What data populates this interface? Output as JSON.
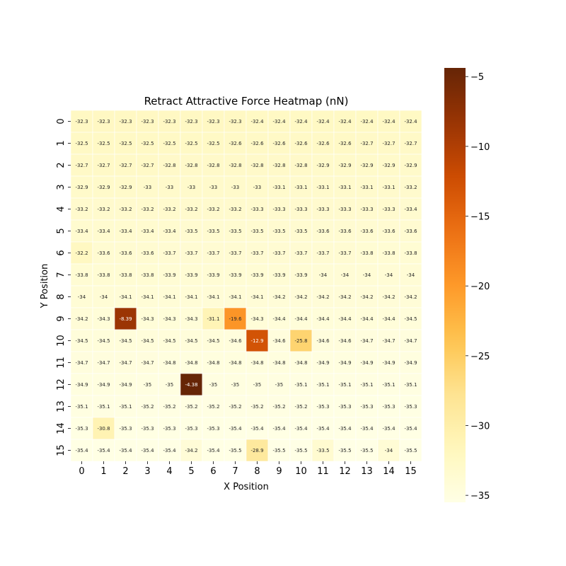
{
  "chart_data": {
    "type": "heatmap",
    "title": "Retract Attractive Force Heatmap (nN)",
    "xlabel": "X Position",
    "ylabel": "Y Position",
    "x_ticks": [
      "0",
      "1",
      "2",
      "3",
      "4",
      "5",
      "6",
      "7",
      "8",
      "9",
      "10",
      "11",
      "12",
      "13",
      "14",
      "15"
    ],
    "y_ticks": [
      "0",
      "1",
      "2",
      "3",
      "4",
      "5",
      "6",
      "7",
      "8",
      "9",
      "10",
      "11",
      "12",
      "13",
      "14",
      "15"
    ],
    "colormap": "YlOrBr",
    "color_range": [
      -35.5,
      -4.38
    ],
    "colorbar_ticks": [
      "−5",
      "−10",
      "−15",
      "−20",
      "−25",
      "−30",
      "−35"
    ],
    "colorbar_tick_values": [
      -5,
      -10,
      -15,
      -20,
      -25,
      -30,
      -35
    ],
    "values": [
      [
        -32.3,
        -32.3,
        -32.3,
        -32.3,
        -32.3,
        -32.3,
        -32.3,
        -32.3,
        -32.4,
        -32.4,
        -32.4,
        -32.4,
        -32.4,
        -32.4,
        -32.4,
        -32.4
      ],
      [
        -32.5,
        -32.5,
        -32.5,
        -32.5,
        -32.5,
        -32.5,
        -32.5,
        -32.6,
        -32.6,
        -32.6,
        -32.6,
        -32.6,
        -32.6,
        -32.7,
        -32.7,
        -32.7
      ],
      [
        -32.7,
        -32.7,
        -32.7,
        -32.7,
        -32.8,
        -32.8,
        -32.8,
        -32.8,
        -32.8,
        -32.8,
        -32.8,
        -32.9,
        -32.9,
        -32.9,
        -32.9,
        -32.9
      ],
      [
        -32.9,
        -32.9,
        -32.9,
        -33,
        -33,
        -33,
        -33,
        -33,
        -33,
        -33.1,
        -33.1,
        -33.1,
        -33.1,
        -33.1,
        -33.1,
        -33.2
      ],
      [
        -33.2,
        -33.2,
        -33.2,
        -33.2,
        -33.2,
        -33.2,
        -33.2,
        -33.2,
        -33.3,
        -33.3,
        -33.3,
        -33.3,
        -33.3,
        -33.3,
        -33.3,
        -33.4
      ],
      [
        -33.4,
        -33.4,
        -33.4,
        -33.4,
        -33.4,
        -33.5,
        -33.5,
        -33.5,
        -33.5,
        -33.5,
        -33.5,
        -33.6,
        -33.6,
        -33.6,
        -33.6,
        -33.6
      ],
      [
        -32.2,
        -33.6,
        -33.6,
        -33.6,
        -33.7,
        -33.7,
        -33.7,
        -33.7,
        -33.7,
        -33.7,
        -33.7,
        -33.7,
        -33.7,
        -33.8,
        -33.8,
        -33.8
      ],
      [
        -33.8,
        -33.8,
        -33.8,
        -33.8,
        -33.9,
        -33.9,
        -33.9,
        -33.9,
        -33.9,
        -33.9,
        -33.9,
        -34,
        -34,
        -34,
        -34,
        -34
      ],
      [
        -34,
        -34,
        -34.1,
        -34.1,
        -34.1,
        -34.1,
        -34.1,
        -34.1,
        -34.1,
        -34.2,
        -34.2,
        -34.2,
        -34.2,
        -34.2,
        -34.2,
        -34.2
      ],
      [
        -34.2,
        -34.3,
        -8.39,
        -34.3,
        -34.3,
        -34.3,
        -31.1,
        -19.6,
        -34.3,
        -34.4,
        -34.4,
        -34.4,
        -34.4,
        -34.4,
        -34.4,
        -34.5
      ],
      [
        -34.5,
        -34.5,
        -34.5,
        -34.5,
        -34.5,
        -34.5,
        -34.5,
        -34.6,
        -12.9,
        -34.6,
        -25.8,
        -34.6,
        -34.6,
        -34.7,
        -34.7,
        -34.7
      ],
      [
        -34.7,
        -34.7,
        -34.7,
        -34.7,
        -34.8,
        -34.8,
        -34.8,
        -34.8,
        -34.8,
        -34.8,
        -34.8,
        -34.9,
        -34.9,
        -34.9,
        -34.9,
        -34.9
      ],
      [
        -34.9,
        -34.9,
        -34.9,
        -35,
        -35,
        -4.38,
        -35,
        -35,
        -35,
        -35,
        -35.1,
        -35.1,
        -35.1,
        -35.1,
        -35.1,
        -35.1
      ],
      [
        -35.1,
        -35.1,
        -35.1,
        -35.2,
        -35.2,
        -35.2,
        -35.2,
        -35.2,
        -35.2,
        -35.2,
        -35.2,
        -35.3,
        -35.3,
        -35.3,
        -35.3,
        -35.3
      ],
      [
        -35.3,
        -30.8,
        -35.3,
        -35.3,
        -35.3,
        -35.3,
        -35.3,
        -35.4,
        -35.4,
        -35.4,
        -35.4,
        -35.4,
        -35.4,
        -35.4,
        -35.4,
        -35.4
      ],
      [
        -35.4,
        -35.4,
        -35.4,
        -35.4,
        -35.4,
        -34.2,
        -35.4,
        -35.5,
        -28.9,
        -35.5,
        -35.5,
        -33.5,
        -35.5,
        -35.5,
        -34,
        -35.5
      ]
    ]
  }
}
